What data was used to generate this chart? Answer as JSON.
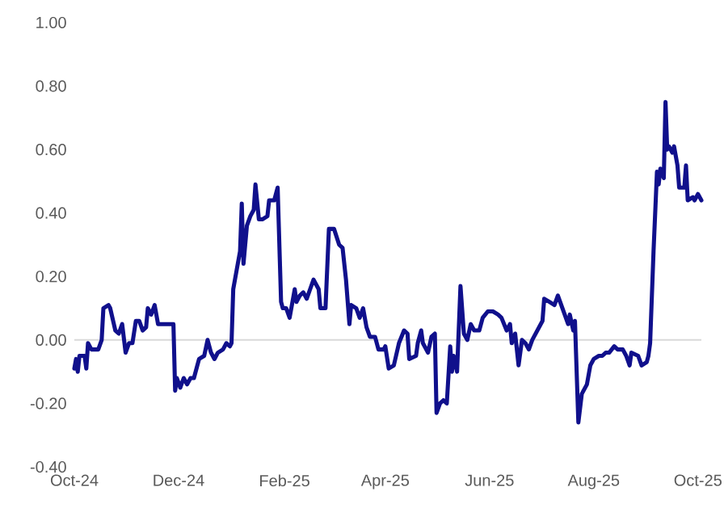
{
  "chart_data": {
    "type": "line",
    "marker": "none",
    "line_style": "solid",
    "xlim": [
      "2024-10-01",
      "2025-10-03"
    ],
    "xticks": [
      {
        "value": "2024-10-01",
        "label": "Oct-24"
      },
      {
        "value": "2024-12-01",
        "label": "Dec-24"
      },
      {
        "value": "2025-02-01",
        "label": "Feb-25"
      },
      {
        "value": "2025-04-01",
        "label": "Apr-25"
      },
      {
        "value": "2025-06-01",
        "label": "Jun-25"
      },
      {
        "value": "2025-08-01",
        "label": "Aug-25"
      },
      {
        "value": "2025-10-01",
        "label": "Oct-25"
      }
    ],
    "ylim": [
      -0.4,
      1.0
    ],
    "yticks": [
      {
        "value": -0.4,
        "label": "-0.40"
      },
      {
        "value": -0.2,
        "label": "-0.20"
      },
      {
        "value": 0,
        "label": "0.00"
      },
      {
        "value": 0.2,
        "label": "0.20"
      },
      {
        "value": 0.4,
        "label": "0.40"
      },
      {
        "value": 0.6,
        "label": "0.60"
      },
      {
        "value": 0.8,
        "label": "0.80"
      },
      {
        "value": 1.0,
        "label": "1.00"
      }
    ],
    "ref_lines": [
      {
        "axis": "y",
        "value": 0,
        "color": "#d9d9d9"
      }
    ],
    "series": [
      {
        "color": "#10108c",
        "x": [
          "2024-10-01",
          "2024-10-02",
          "2024-10-03",
          "2024-10-04",
          "2024-10-07",
          "2024-10-08",
          "2024-10-09",
          "2024-10-11",
          "2024-10-15",
          "2024-10-17",
          "2024-10-18",
          "2024-10-21",
          "2024-10-22",
          "2024-10-25",
          "2024-10-27",
          "2024-10-29",
          "2024-10-31",
          "2024-11-02",
          "2024-11-04",
          "2024-11-06",
          "2024-11-08",
          "2024-11-10",
          "2024-11-12",
          "2024-11-13",
          "2024-11-15",
          "2024-11-17",
          "2024-11-19",
          "2024-11-21",
          "2024-11-24",
          "2024-11-26",
          "2024-11-28",
          "2024-11-29",
          "2024-11-30",
          "2024-12-02",
          "2024-12-04",
          "2024-12-06",
          "2024-12-08",
          "2024-12-10",
          "2024-12-13",
          "2024-12-16",
          "2024-12-18",
          "2024-12-20",
          "2024-12-22",
          "2024-12-24",
          "2024-12-27",
          "2024-12-29",
          "2024-12-31",
          "2025-01-01",
          "2025-01-02",
          "2025-01-04",
          "2025-01-06",
          "2025-01-07",
          "2025-01-08",
          "2025-01-10",
          "2025-01-12",
          "2025-01-14",
          "2025-01-15",
          "2025-01-17",
          "2025-01-19",
          "2025-01-22",
          "2025-01-23",
          "2025-01-26",
          "2025-01-28",
          "2025-01-30",
          "2025-01-31",
          "2025-02-02",
          "2025-02-04",
          "2025-02-07",
          "2025-02-08",
          "2025-02-10",
          "2025-02-12",
          "2025-02-14",
          "2025-02-16",
          "2025-02-18",
          "2025-02-21",
          "2025-02-22",
          "2025-02-25",
          "2025-02-27",
          "2025-03-02",
          "2025-03-05",
          "2025-03-07",
          "2025-03-09",
          "2025-03-11",
          "2025-03-12",
          "2025-03-15",
          "2025-03-17",
          "2025-03-19",
          "2025-03-21",
          "2025-03-23",
          "2025-03-26",
          "2025-03-28",
          "2025-03-31",
          "2025-04-01",
          "2025-04-03",
          "2025-04-06",
          "2025-04-09",
          "2025-04-12",
          "2025-04-14",
          "2025-04-15",
          "2025-04-19",
          "2025-04-20",
          "2025-04-22",
          "2025-04-23",
          "2025-04-26",
          "2025-04-28",
          "2025-04-30",
          "2025-05-01",
          "2025-05-03",
          "2025-05-05",
          "2025-05-07",
          "2025-05-09",
          "2025-05-10",
          "2025-05-11",
          "2025-05-13",
          "2025-05-15",
          "2025-05-17",
          "2025-05-19",
          "2025-05-21",
          "2025-05-23",
          "2025-05-26",
          "2025-05-28",
          "2025-05-31",
          "2025-06-03",
          "2025-06-06",
          "2025-06-08",
          "2025-06-11",
          "2025-06-13",
          "2025-06-14",
          "2025-06-16",
          "2025-06-18",
          "2025-06-20",
          "2025-06-22",
          "2025-06-24",
          "2025-06-26",
          "2025-06-29",
          "2025-07-02",
          "2025-07-03",
          "2025-07-06",
          "2025-07-09",
          "2025-07-11",
          "2025-07-13",
          "2025-07-15",
          "2025-07-17",
          "2025-07-18",
          "2025-07-20",
          "2025-07-21",
          "2025-07-23",
          "2025-07-25",
          "2025-07-28",
          "2025-07-30",
          "2025-08-01",
          "2025-08-04",
          "2025-08-06",
          "2025-08-08",
          "2025-08-10",
          "2025-08-13",
          "2025-08-15",
          "2025-08-18",
          "2025-08-20",
          "2025-08-22",
          "2025-08-23",
          "2025-08-27",
          "2025-08-29",
          "2025-09-01",
          "2025-09-02",
          "2025-09-03",
          "2025-09-05",
          "2025-09-07",
          "2025-09-08",
          "2025-09-09",
          "2025-09-11",
          "2025-09-12",
          "2025-09-13",
          "2025-09-14",
          "2025-09-16",
          "2025-09-17",
          "2025-09-19",
          "2025-09-20",
          "2025-09-23",
          "2025-09-24",
          "2025-09-25",
          "2025-09-28",
          "2025-09-29",
          "2025-10-01",
          "2025-10-03"
        ],
        "values": [
          -0.09,
          -0.06,
          -0.1,
          -0.05,
          -0.05,
          -0.09,
          -0.01,
          -0.03,
          -0.03,
          0.0,
          0.1,
          0.11,
          0.1,
          0.03,
          0.02,
          0.05,
          -0.04,
          -0.01,
          -0.01,
          0.06,
          0.06,
          0.03,
          0.04,
          0.1,
          0.08,
          0.11,
          0.05,
          0.05,
          0.05,
          0.05,
          0.05,
          -0.16,
          -0.12,
          -0.15,
          -0.12,
          -0.14,
          -0.12,
          -0.12,
          -0.06,
          -0.05,
          0.0,
          -0.04,
          -0.06,
          -0.04,
          -0.03,
          -0.01,
          -0.02,
          -0.01,
          0.16,
          0.22,
          0.28,
          0.43,
          0.24,
          0.36,
          0.39,
          0.41,
          0.49,
          0.38,
          0.38,
          0.39,
          0.44,
          0.44,
          0.48,
          0.12,
          0.1,
          0.1,
          0.07,
          0.16,
          0.12,
          0.14,
          0.15,
          0.13,
          0.16,
          0.19,
          0.16,
          0.1,
          0.1,
          0.35,
          0.35,
          0.3,
          0.29,
          0.19,
          0.05,
          0.11,
          0.1,
          0.07,
          0.1,
          0.04,
          0.01,
          0.01,
          -0.03,
          -0.03,
          -0.02,
          -0.09,
          -0.08,
          -0.01,
          0.03,
          0.02,
          -0.06,
          -0.05,
          -0.01,
          0.03,
          -0.01,
          -0.04,
          0.01,
          0.02,
          -0.23,
          -0.2,
          -0.19,
          -0.2,
          -0.02,
          -0.1,
          -0.05,
          -0.1,
          0.17,
          0.02,
          0.0,
          0.05,
          0.03,
          0.03,
          0.07,
          0.09,
          0.09,
          0.08,
          0.07,
          0.03,
          0.05,
          -0.01,
          0.02,
          -0.08,
          0.0,
          -0.01,
          -0.03,
          0.0,
          0.03,
          0.06,
          0.13,
          0.12,
          0.11,
          0.14,
          0.11,
          0.08,
          0.05,
          0.08,
          0.03,
          0.06,
          -0.26,
          -0.17,
          -0.14,
          -0.08,
          -0.06,
          -0.05,
          -0.05,
          -0.04,
          -0.04,
          -0.02,
          -0.03,
          -0.03,
          -0.05,
          -0.08,
          -0.04,
          -0.05,
          -0.08,
          -0.07,
          -0.05,
          -0.01,
          0.28,
          0.53,
          0.49,
          0.54,
          0.51,
          0.75,
          0.6,
          0.61,
          0.59,
          0.61,
          0.55,
          0.48,
          0.48,
          0.55,
          0.44,
          0.45,
          0.44,
          0.46,
          0.44
        ]
      }
    ]
  }
}
